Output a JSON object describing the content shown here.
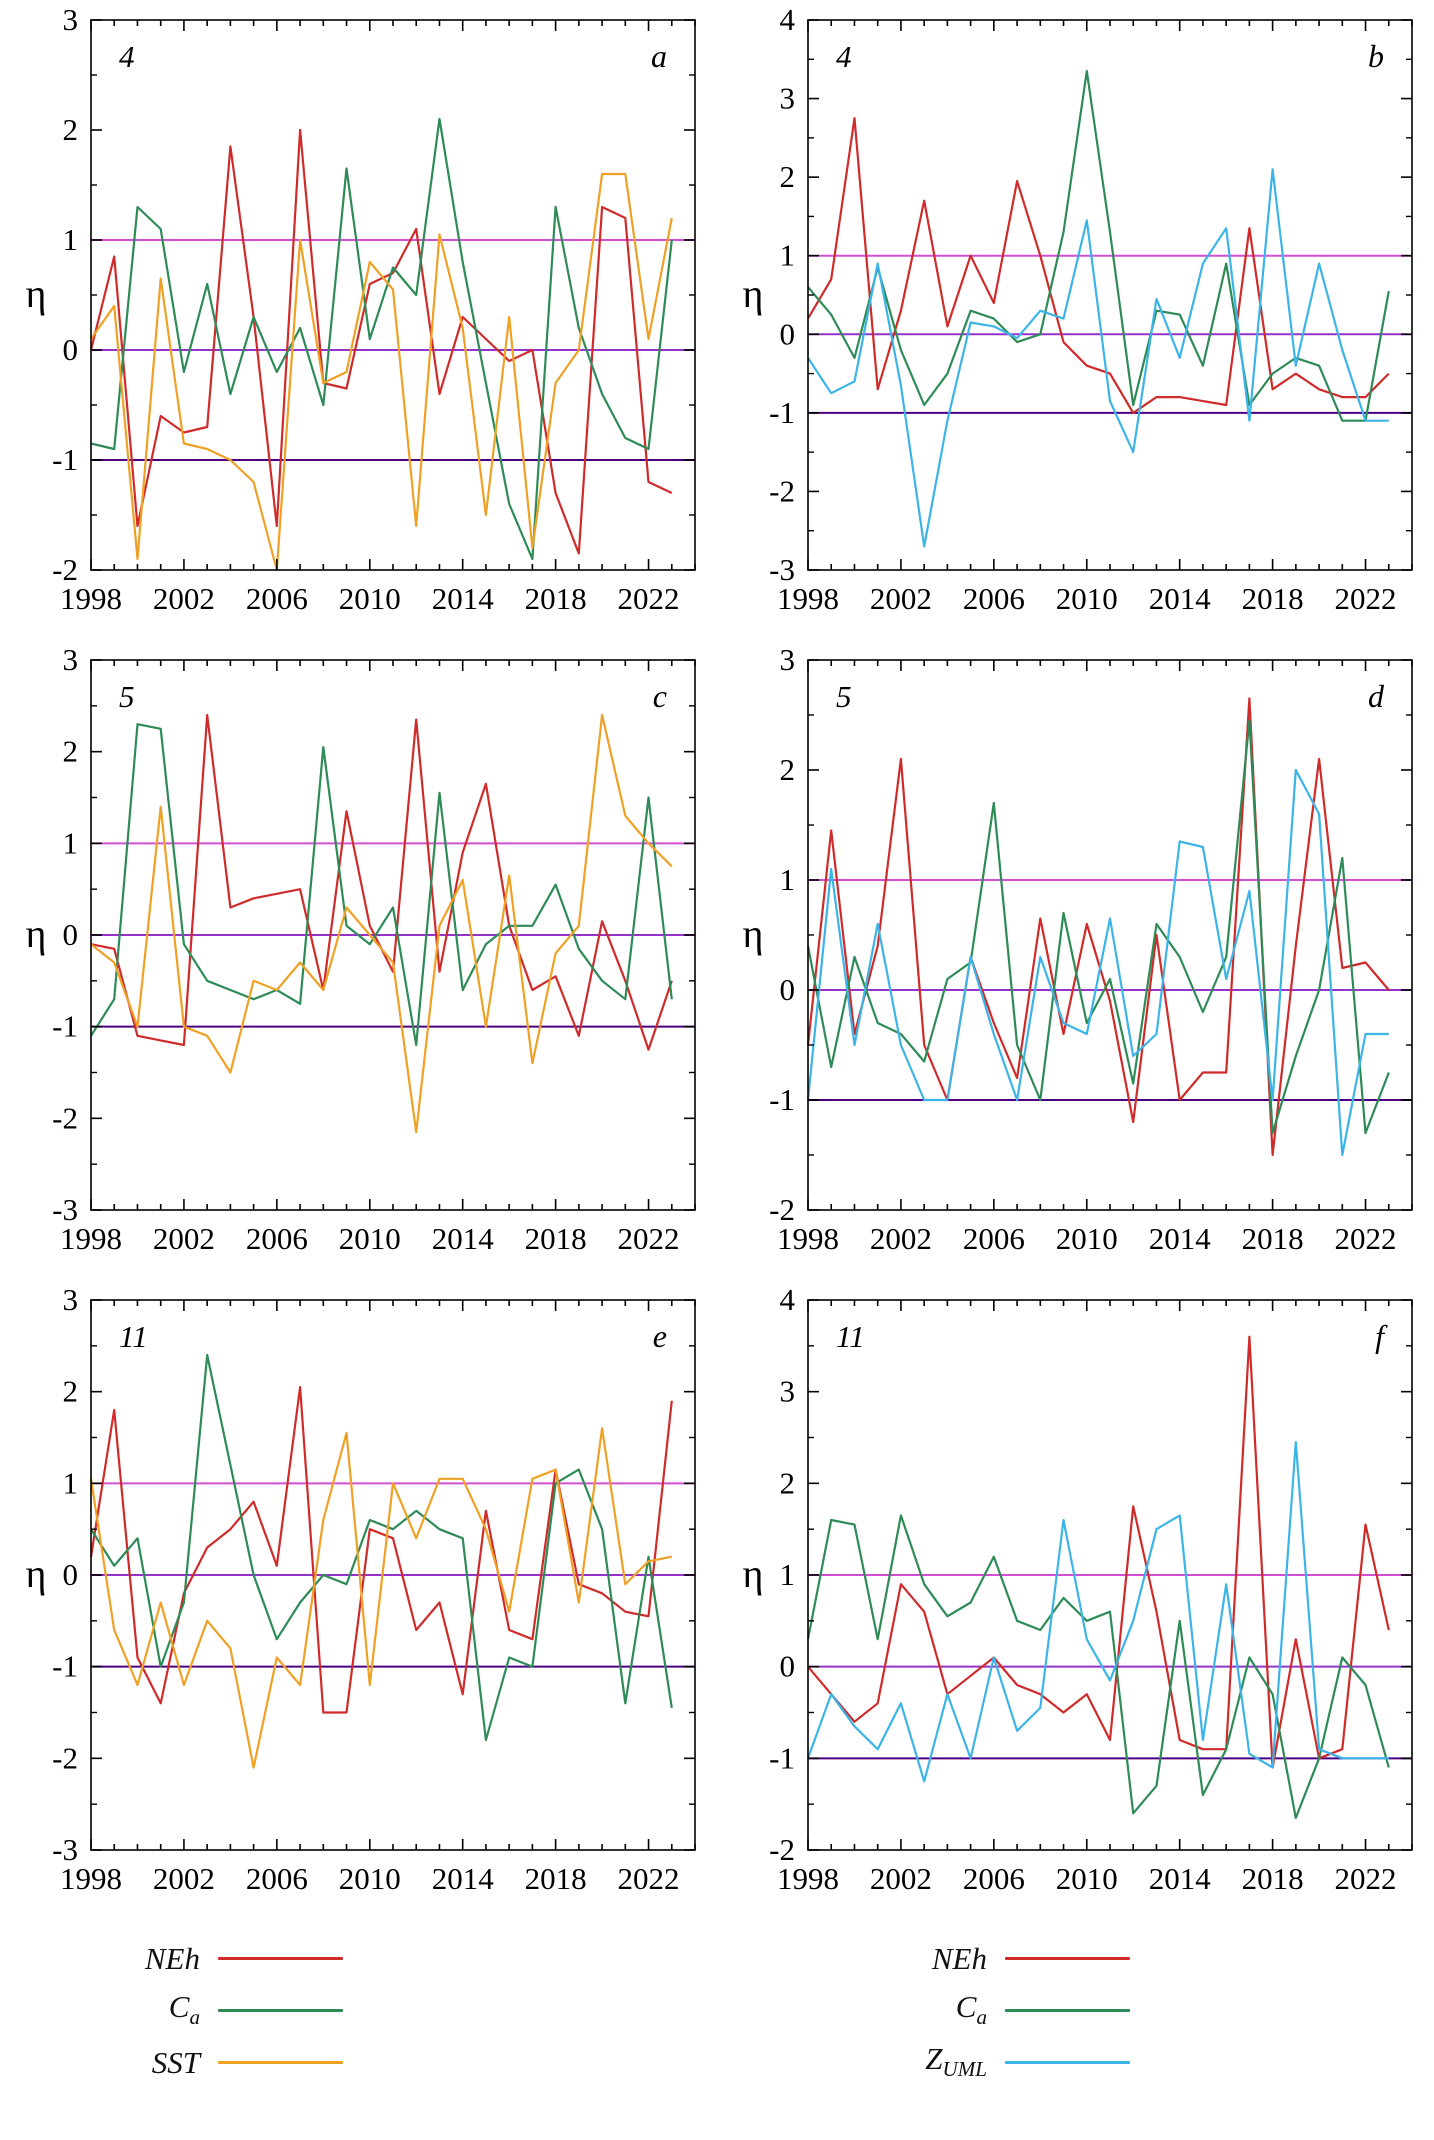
{
  "figure": {
    "background": "#ffffff"
  },
  "colors": {
    "axis": "#000000",
    "NEh": "#cf2b2b",
    "Ca": "#2e8b57",
    "SST": "#efa126",
    "ZUML": "#3cb4e7",
    "ref_plus1": "#d24fd2",
    "ref_zero": "#9333c9",
    "ref_minus1": "#4b0082"
  },
  "legends": {
    "left": [
      {
        "label": "NEh",
        "subscript": "",
        "color": "#cf2b2b"
      },
      {
        "label": "C",
        "subscript": "a",
        "color": "#2e8b57"
      },
      {
        "label": "SST",
        "subscript": "",
        "color": "#efa126"
      }
    ],
    "right": [
      {
        "label": "NEh",
        "subscript": "",
        "color": "#cf2b2b"
      },
      {
        "label": "C",
        "subscript": "a",
        "color": "#2e8b57"
      },
      {
        "label": "Z",
        "subscript": "UML",
        "color": "#3cb4e7"
      }
    ]
  },
  "chart_data": [
    {
      "type": "line",
      "panel_label": "4",
      "corner_letter": "a",
      "ylabel": "η",
      "ylim": [
        -2,
        3
      ],
      "xlim": [
        1998,
        2024
      ],
      "xticks": [
        1998,
        2002,
        2006,
        2010,
        2014,
        2018,
        2022
      ],
      "reference_lines": [
        1,
        0,
        -1
      ],
      "x": [
        1998,
        1999,
        2000,
        2001,
        2002,
        2003,
        2004,
        2005,
        2006,
        2007,
        2008,
        2009,
        2010,
        2011,
        2012,
        2013,
        2014,
        2015,
        2016,
        2017,
        2018,
        2019,
        2020,
        2021,
        2022,
        2023
      ],
      "series": [
        {
          "name": "NEh",
          "color": "#cf2b2b",
          "values": [
            0.0,
            0.85,
            -1.6,
            -0.6,
            -0.75,
            -0.7,
            1.85,
            0.3,
            -1.6,
            2.0,
            -0.3,
            -0.35,
            0.6,
            0.7,
            1.1,
            -0.4,
            0.3,
            0.1,
            -0.1,
            0.0,
            -1.3,
            -1.85,
            1.3,
            1.2,
            -1.2,
            -1.3
          ]
        },
        {
          "name": "Ca",
          "color": "#2e8b57",
          "values": [
            -0.85,
            -0.9,
            1.3,
            1.1,
            -0.2,
            0.6,
            -0.4,
            0.3,
            -0.2,
            0.2,
            -0.5,
            1.65,
            0.1,
            0.75,
            0.5,
            2.1,
            0.8,
            -0.3,
            -1.4,
            -1.9,
            1.3,
            0.2,
            -0.4,
            -0.8,
            -0.9,
            1.0
          ]
        },
        {
          "name": "SST",
          "color": "#efa126",
          "values": [
            0.1,
            0.4,
            -1.9,
            0.65,
            -0.85,
            -0.9,
            -1.0,
            -1.2,
            -2.0,
            1.0,
            -0.3,
            -0.2,
            0.8,
            0.55,
            -1.6,
            1.05,
            0.2,
            -1.5,
            0.3,
            -1.8,
            -0.3,
            0.0,
            1.6,
            1.6,
            0.1,
            1.2
          ]
        }
      ]
    },
    {
      "type": "line",
      "panel_label": "4",
      "corner_letter": "b",
      "ylabel": "η",
      "ylim": [
        -3,
        4
      ],
      "xlim": [
        1998,
        2024
      ],
      "xticks": [
        1998,
        2002,
        2006,
        2010,
        2014,
        2018,
        2022
      ],
      "reference_lines": [
        1,
        0,
        -1
      ],
      "x": [
        1998,
        1999,
        2000,
        2001,
        2002,
        2003,
        2004,
        2005,
        2006,
        2007,
        2008,
        2009,
        2010,
        2011,
        2012,
        2013,
        2014,
        2015,
        2016,
        2017,
        2018,
        2019,
        2020,
        2021,
        2022,
        2023
      ],
      "series": [
        {
          "name": "NEh",
          "color": "#cf2b2b",
          "values": [
            0.2,
            0.7,
            2.75,
            -0.7,
            0.3,
            1.7,
            0.1,
            1.0,
            0.4,
            1.95,
            1.0,
            -0.1,
            -0.4,
            -0.5,
            -1.0,
            -0.8,
            -0.8,
            -0.85,
            -0.9,
            1.35,
            -0.7,
            -0.5,
            -0.7,
            -0.8,
            -0.8,
            -0.5
          ]
        },
        {
          "name": "Ca",
          "color": "#2e8b57",
          "values": [
            0.6,
            0.25,
            -0.3,
            0.85,
            -0.2,
            -0.9,
            -0.5,
            0.3,
            0.2,
            -0.1,
            0.0,
            1.3,
            3.35,
            1.3,
            -0.9,
            0.3,
            0.25,
            -0.4,
            0.9,
            -0.9,
            -0.5,
            -0.3,
            -0.4,
            -1.1,
            -1.1,
            0.55
          ]
        },
        {
          "name": "ZUML",
          "color": "#3cb4e7",
          "values": [
            -0.3,
            -0.75,
            -0.6,
            0.9,
            -0.65,
            -2.7,
            -1.1,
            0.15,
            0.1,
            -0.05,
            0.3,
            0.2,
            1.45,
            -0.85,
            -1.5,
            0.45,
            -0.3,
            0.9,
            1.35,
            -1.1,
            2.1,
            -0.4,
            0.9,
            -0.2,
            -1.1,
            -1.1
          ]
        }
      ]
    },
    {
      "type": "line",
      "panel_label": "5",
      "corner_letter": "c",
      "ylabel": "η",
      "ylim": [
        -3,
        3
      ],
      "xlim": [
        1998,
        2024
      ],
      "xticks": [
        1998,
        2002,
        2006,
        2010,
        2014,
        2018,
        2022
      ],
      "reference_lines": [
        1,
        0,
        -1
      ],
      "x": [
        1998,
        1999,
        2000,
        2001,
        2002,
        2003,
        2004,
        2005,
        2006,
        2007,
        2008,
        2009,
        2010,
        2011,
        2012,
        2013,
        2014,
        2015,
        2016,
        2017,
        2018,
        2019,
        2020,
        2021,
        2022,
        2023
      ],
      "series": [
        {
          "name": "NEh",
          "color": "#cf2b2b",
          "values": [
            -0.1,
            -0.15,
            -1.1,
            -1.15,
            -1.2,
            2.4,
            0.3,
            0.4,
            0.45,
            0.5,
            -0.6,
            1.35,
            0.1,
            -0.4,
            2.35,
            -0.4,
            0.9,
            1.65,
            0.1,
            -0.6,
            -0.45,
            -1.1,
            0.15,
            -0.5,
            -1.25,
            -0.5
          ]
        },
        {
          "name": "Ca",
          "color": "#2e8b57",
          "values": [
            -1.1,
            -0.7,
            2.3,
            2.25,
            -0.1,
            -0.5,
            -0.6,
            -0.7,
            -0.6,
            -0.75,
            2.05,
            0.1,
            -0.1,
            0.3,
            -1.2,
            1.55,
            -0.6,
            -0.1,
            0.1,
            0.1,
            0.55,
            -0.15,
            -0.5,
            -0.7,
            1.5,
            -0.7
          ]
        },
        {
          "name": "SST",
          "color": "#efa126",
          "values": [
            -0.1,
            -0.3,
            -1.0,
            1.4,
            -1.0,
            -1.1,
            -1.5,
            -0.5,
            -0.6,
            -0.3,
            -0.6,
            0.3,
            0.0,
            -0.3,
            -2.15,
            0.1,
            0.6,
            -1.0,
            0.65,
            -1.4,
            -0.2,
            0.1,
            2.4,
            1.3,
            1.0,
            0.75
          ]
        }
      ]
    },
    {
      "type": "line",
      "panel_label": "5",
      "corner_letter": "d",
      "ylabel": "η",
      "ylim": [
        -2,
        3
      ],
      "xlim": [
        1998,
        2024
      ],
      "xticks": [
        1998,
        2002,
        2006,
        2010,
        2014,
        2018,
        2022
      ],
      "reference_lines": [
        1,
        0,
        -1
      ],
      "x": [
        1998,
        1999,
        2000,
        2001,
        2002,
        2003,
        2004,
        2005,
        2006,
        2007,
        2008,
        2009,
        2010,
        2011,
        2012,
        2013,
        2014,
        2015,
        2016,
        2017,
        2018,
        2019,
        2020,
        2021,
        2022,
        2023
      ],
      "series": [
        {
          "name": "NEh",
          "color": "#cf2b2b",
          "values": [
            -0.5,
            1.45,
            -0.4,
            0.4,
            2.1,
            -0.5,
            -1.0,
            0.3,
            -0.3,
            -0.8,
            0.65,
            -0.4,
            0.6,
            -0.1,
            -1.2,
            0.5,
            -1.0,
            -0.75,
            -0.75,
            2.65,
            -1.5,
            0.4,
            2.1,
            0.2,
            0.25,
            0.0
          ]
        },
        {
          "name": "Ca",
          "color": "#2e8b57",
          "values": [
            0.4,
            -0.7,
            0.3,
            -0.3,
            -0.4,
            -0.65,
            0.1,
            0.25,
            1.7,
            -0.5,
            -1.0,
            0.7,
            -0.3,
            0.1,
            -0.85,
            0.6,
            0.3,
            -0.2,
            0.3,
            2.45,
            -1.3,
            -0.6,
            0.0,
            1.2,
            -1.3,
            -0.75
          ]
        },
        {
          "name": "ZUML",
          "color": "#3cb4e7",
          "values": [
            -1.0,
            1.1,
            -0.5,
            0.6,
            -0.5,
            -1.0,
            -1.0,
            0.3,
            -0.4,
            -1.0,
            0.3,
            -0.3,
            -0.4,
            0.65,
            -0.6,
            -0.4,
            1.35,
            1.3,
            0.1,
            0.9,
            -1.0,
            2.0,
            1.6,
            -1.5,
            -0.4,
            -0.4
          ]
        }
      ]
    },
    {
      "type": "line",
      "panel_label": "11",
      "corner_letter": "e",
      "ylabel": "η",
      "ylim": [
        -3,
        3
      ],
      "xlim": [
        1998,
        2024
      ],
      "xticks": [
        1998,
        2002,
        2006,
        2010,
        2014,
        2018,
        2022
      ],
      "reference_lines": [
        1,
        0,
        -1
      ],
      "x": [
        1998,
        1999,
        2000,
        2001,
        2002,
        2003,
        2004,
        2005,
        2006,
        2007,
        2008,
        2009,
        2010,
        2011,
        2012,
        2013,
        2014,
        2015,
        2016,
        2017,
        2018,
        2019,
        2020,
        2021,
        2022,
        2023
      ],
      "series": [
        {
          "name": "NEh",
          "color": "#cf2b2b",
          "values": [
            0.2,
            1.8,
            -0.9,
            -1.4,
            -0.2,
            0.3,
            0.5,
            0.8,
            0.1,
            2.05,
            -1.5,
            -1.5,
            0.5,
            0.4,
            -0.6,
            -0.3,
            -1.3,
            0.7,
            -0.6,
            -0.7,
            1.15,
            -0.1,
            -0.2,
            -0.4,
            -0.45,
            1.9
          ]
        },
        {
          "name": "Ca",
          "color": "#2e8b57",
          "values": [
            0.5,
            0.1,
            0.4,
            -1.0,
            -0.3,
            2.4,
            1.2,
            0.0,
            -0.7,
            -0.3,
            0.0,
            -0.1,
            0.6,
            0.5,
            0.7,
            0.5,
            0.4,
            -1.8,
            -0.9,
            -1.0,
            1.0,
            1.15,
            0.5,
            -1.4,
            0.2,
            -1.45
          ]
        },
        {
          "name": "SST",
          "color": "#efa126",
          "values": [
            1.05,
            -0.6,
            -1.2,
            -0.3,
            -1.2,
            -0.5,
            -0.8,
            -2.1,
            -0.9,
            -1.2,
            0.6,
            1.55,
            -1.2,
            1.0,
            0.4,
            1.05,
            1.05,
            0.5,
            -0.4,
            1.05,
            1.15,
            -0.3,
            1.6,
            -0.1,
            0.15,
            0.2
          ]
        }
      ]
    },
    {
      "type": "line",
      "panel_label": "11",
      "corner_letter": "f",
      "ylabel": "η",
      "ylim": [
        -2,
        4
      ],
      "xlim": [
        1998,
        2024
      ],
      "xticks": [
        1998,
        2002,
        2006,
        2010,
        2014,
        2018,
        2022
      ],
      "reference_lines": [
        1,
        0,
        -1
      ],
      "x": [
        1998,
        1999,
        2000,
        2001,
        2002,
        2003,
        2004,
        2005,
        2006,
        2007,
        2008,
        2009,
        2010,
        2011,
        2012,
        2013,
        2014,
        2015,
        2016,
        2017,
        2018,
        2019,
        2020,
        2021,
        2022,
        2023
      ],
      "series": [
        {
          "name": "NEh",
          "color": "#cf2b2b",
          "values": [
            0.0,
            -0.3,
            -0.6,
            -0.4,
            0.9,
            0.6,
            -0.3,
            -0.1,
            0.1,
            -0.2,
            -0.3,
            -0.5,
            -0.3,
            -0.8,
            1.75,
            0.6,
            -0.8,
            -0.9,
            -0.9,
            3.6,
            -1.1,
            0.3,
            -1.0,
            -0.9,
            1.55,
            0.4
          ]
        },
        {
          "name": "Ca",
          "color": "#2e8b57",
          "values": [
            0.3,
            1.6,
            1.55,
            0.3,
            1.65,
            0.9,
            0.55,
            0.7,
            1.2,
            0.5,
            0.4,
            0.75,
            0.5,
            0.6,
            -1.6,
            -1.3,
            0.5,
            -1.4,
            -0.9,
            0.1,
            -0.3,
            -1.65,
            -1.0,
            0.1,
            -0.2,
            -1.1
          ]
        },
        {
          "name": "ZUML",
          "color": "#3cb4e7",
          "values": [
            -1.0,
            -0.3,
            -0.65,
            -0.9,
            -0.4,
            -1.25,
            -0.3,
            -1.0,
            0.1,
            -0.7,
            -0.45,
            1.6,
            0.3,
            -0.15,
            0.5,
            1.5,
            1.65,
            -0.8,
            0.9,
            -0.95,
            -1.1,
            2.45,
            -0.9,
            -1.0,
            -1.0,
            -1.0
          ]
        }
      ]
    }
  ]
}
